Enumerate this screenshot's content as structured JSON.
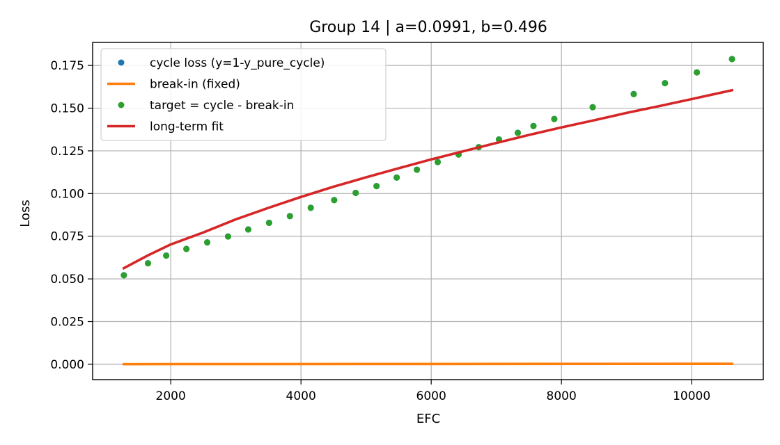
{
  "chart_data": {
    "type": "line",
    "title": "Group 14 | a=0.0991, b=0.496",
    "xlabel": "EFC",
    "ylabel": "Loss",
    "xlim": [
      800,
      11100
    ],
    "ylim": [
      -0.009,
      0.1885
    ],
    "grid": true,
    "legend_position": "upper-left",
    "x_ticks": [
      2000,
      4000,
      6000,
      8000,
      10000
    ],
    "x_tick_labels": [
      "2000",
      "4000",
      "6000",
      "8000",
      "10000"
    ],
    "y_ticks": [
      0.0,
      0.025,
      0.05,
      0.075,
      0.1,
      0.125,
      0.15,
      0.175
    ],
    "y_tick_labels": [
      "0.000",
      "0.025",
      "0.050",
      "0.075",
      "0.100",
      "0.125",
      "0.150",
      "0.175"
    ],
    "x": [
      1280,
      1650,
      1930,
      2240,
      2560,
      2880,
      3190,
      3510,
      3830,
      4150,
      4510,
      4840,
      5160,
      5470,
      5780,
      6100,
      6420,
      6730,
      7040,
      7330,
      7570,
      7890,
      8480,
      9110,
      9590,
      10080,
      10620
    ],
    "series": [
      {
        "name": "cycle loss (y=1-y_pure_cycle)",
        "kind": "scatter",
        "color": "#1f77b4",
        "values": [
          0.0522,
          0.0592,
          0.0637,
          0.0676,
          0.0714,
          0.0749,
          0.079,
          0.0829,
          0.0868,
          0.0917,
          0.0962,
          0.1004,
          0.1044,
          0.1094,
          0.114,
          0.1185,
          0.1229,
          0.1272,
          0.1317,
          0.1356,
          0.1396,
          0.1437,
          0.1506,
          0.1583,
          0.1647,
          0.171,
          0.1788
        ]
      },
      {
        "name": "break-in (fixed)",
        "kind": "line",
        "color": "#ff7f0e",
        "x": [
          1280,
          10620
        ],
        "values": [
          0.0001,
          0.0003
        ]
      },
      {
        "name": "target = cycle - break-in",
        "kind": "scatter",
        "color": "#2ca02c",
        "values": [
          0.0521,
          0.0591,
          0.0636,
          0.0675,
          0.0713,
          0.0748,
          0.0789,
          0.0828,
          0.0867,
          0.0916,
          0.0961,
          0.1003,
          0.1043,
          0.1093,
          0.1139,
          0.1184,
          0.1228,
          0.1271,
          0.1316,
          0.1355,
          0.1395,
          0.1436,
          0.1505,
          0.1582,
          0.1646,
          0.1709,
          0.1787
        ]
      },
      {
        "name": "long-term fit",
        "kind": "line",
        "color": "#d62728",
        "x": [
          1280,
          1650,
          2000,
          2500,
          3000,
          3500,
          4000,
          4500,
          5000,
          5500,
          6000,
          6500,
          7000,
          7500,
          8000,
          8500,
          9000,
          9500,
          10000,
          10620
        ],
        "values": [
          0.0563,
          0.0638,
          0.0702,
          0.0772,
          0.0849,
          0.0916,
          0.098,
          0.104,
          0.1095,
          0.1148,
          0.12,
          0.1248,
          0.1296,
          0.1343,
          0.1387,
          0.1429,
          0.1472,
          0.1512,
          0.1553,
          0.1605
        ]
      }
    ]
  }
}
